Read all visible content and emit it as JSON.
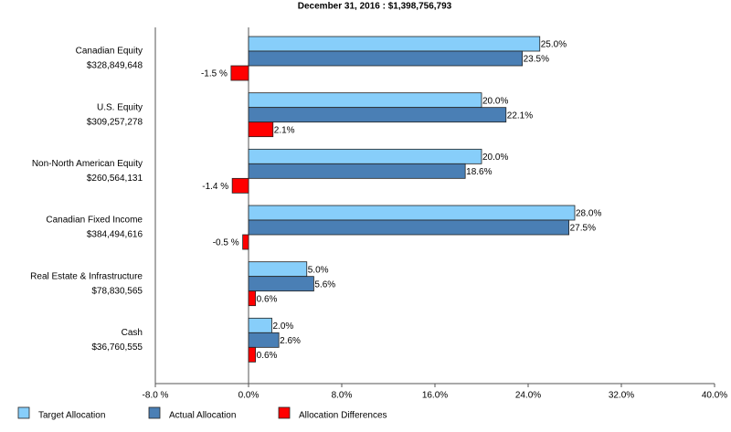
{
  "chart_data": {
    "type": "hbar",
    "title": "December 31, 2016 : $1,398,756,793",
    "categories": [
      "Canadian Equity",
      "U.S. Equity",
      "Non-North American Equity",
      "Canadian Fixed Income",
      "Real Estate & Infrastructure",
      "Cash"
    ],
    "category_amounts": [
      "$328,849,648",
      "$309,257,278",
      "$260,564,131",
      "$384,494,616",
      "$78,830,565",
      "$36,760,555"
    ],
    "series": [
      {
        "name": "Target Allocation",
        "color": "#87cefa",
        "values": [
          25.0,
          20.0,
          20.0,
          28.0,
          5.0,
          2.0
        ],
        "value_labels": [
          "25.0%",
          "20.0%",
          "20.0%",
          "28.0%",
          "5.0%",
          "2.0%"
        ]
      },
      {
        "name": "Actual Allocation",
        "color": "#4a7fb5",
        "values": [
          23.5,
          22.1,
          18.6,
          27.5,
          5.6,
          2.6
        ],
        "value_labels": [
          "23.5%",
          "22.1%",
          "18.6%",
          "27.5%",
          "5.6%",
          "2.6%"
        ]
      },
      {
        "name": "Allocation Differences",
        "color": "#ff0000",
        "values": [
          -1.5,
          2.1,
          -1.4,
          -0.5,
          0.6,
          0.6
        ],
        "value_labels": [
          "-1.5 %",
          "2.1%",
          "-1.4 %",
          "-0.5 %",
          "0.6%",
          "0.6%"
        ]
      }
    ],
    "xlim": [
      -8,
      40
    ],
    "xticks": [
      {
        "value": -8,
        "label": "-8.0 %"
      },
      {
        "value": 0,
        "label": "0.0%"
      },
      {
        "value": 8,
        "label": "8.0%"
      },
      {
        "value": 16,
        "label": "16.0%"
      },
      {
        "value": 24,
        "label": "24.0%"
      },
      {
        "value": 32,
        "label": "32.0%"
      },
      {
        "value": 40,
        "label": "40.0%"
      }
    ]
  }
}
